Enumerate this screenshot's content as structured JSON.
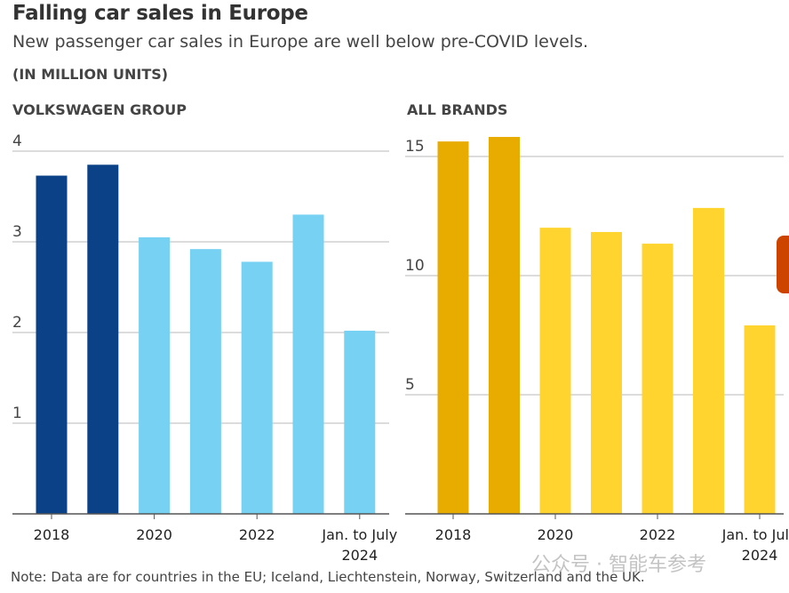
{
  "chart_data": [
    {
      "type": "bar",
      "title": "VOLKSWAGEN GROUP",
      "ylabel": "(IN MILLION UNITS)",
      "ylim": [
        0,
        4
      ],
      "yticks": [
        1,
        2,
        3,
        4
      ],
      "categories": [
        "2018",
        "2019",
        "2020",
        "2021",
        "2022",
        "2023",
        "Jan. to July 2024"
      ],
      "values": [
        3.73,
        3.85,
        3.05,
        2.92,
        2.78,
        3.3,
        2.02
      ],
      "tick_labels": [
        {
          "i": 0,
          "l1": "2018",
          "l2": ""
        },
        {
          "i": 2,
          "l1": "2020",
          "l2": ""
        },
        {
          "i": 4,
          "l1": "2022",
          "l2": ""
        },
        {
          "i": 6,
          "l1": "Jan. to July",
          "l2": "2024"
        }
      ],
      "colors": [
        "#0b4287",
        "#0b4287",
        "#76d1f3",
        "#76d1f3",
        "#76d1f3",
        "#76d1f3",
        "#76d1f3"
      ],
      "grid": true
    },
    {
      "type": "bar",
      "title": "ALL BRANDS",
      "ylabel": "(IN MILLION UNITS)",
      "ylim": [
        0,
        15.5
      ],
      "yticks": [
        5,
        10,
        15
      ],
      "categories": [
        "2018",
        "2019",
        "2020",
        "2021",
        "2022",
        "2023",
        "Jan. to July 2024"
      ],
      "values": [
        15.63,
        15.82,
        12.01,
        11.83,
        11.34,
        12.84,
        7.91
      ],
      "tick_labels": [
        {
          "i": 0,
          "l1": "2018",
          "l2": ""
        },
        {
          "i": 2,
          "l1": "2020",
          "l2": ""
        },
        {
          "i": 4,
          "l1": "2022",
          "l2": ""
        },
        {
          "i": 6,
          "l1": "Jan. to July",
          "l2": "2024"
        }
      ],
      "colors": [
        "#e8ab00",
        "#e8ab00",
        "#ffd42e",
        "#ffd42e",
        "#ffd42e",
        "#ffd42e",
        "#ffd42e"
      ],
      "grid": true
    }
  ],
  "header": {
    "title": "Falling car sales in Europe",
    "subtitle": "New passenger car sales in Europe are well below pre-COVID levels.",
    "units": "(IN MILLION UNITS)"
  },
  "note": "Note: Data are for countries in the EU; Iceland, Liechtenstein, Norway, Switzerland and the UK.",
  "watermark": "公众号 · 智能车参考"
}
